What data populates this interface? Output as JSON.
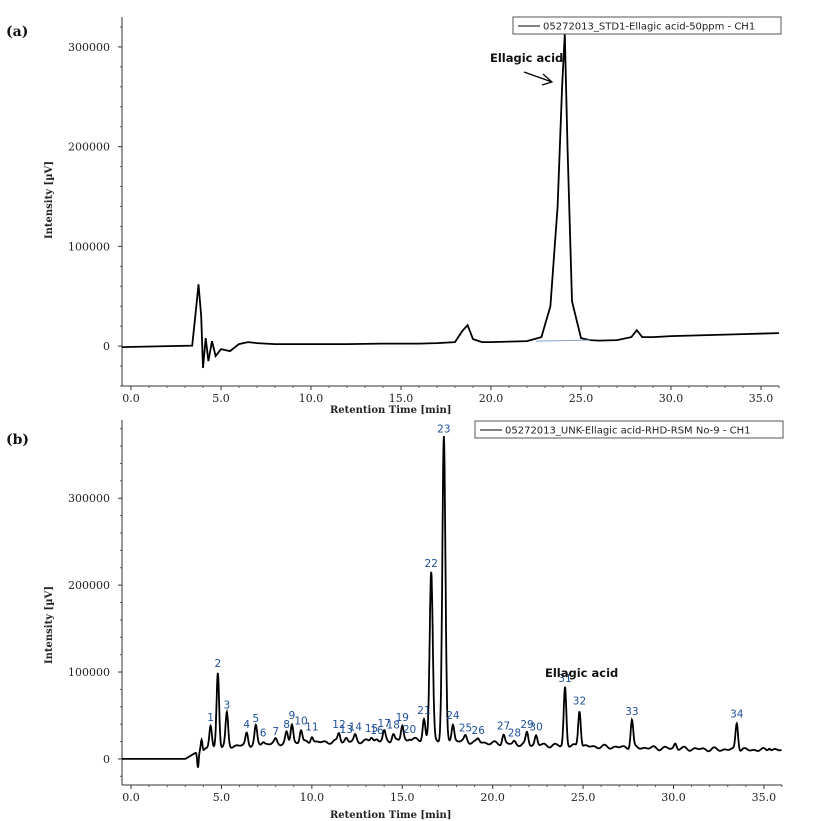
{
  "chart_data": [
    {
      "panel": "(a)",
      "type": "line",
      "legend": "05272013_STD1-Ellagic acid-50ppm - CH1",
      "xlabel": "Retention Time [min]",
      "ylabel": "Intensity [µV]",
      "xlim": [
        -0.5,
        36
      ],
      "ylim": [
        -40000,
        330000
      ],
      "xticks": [
        0.0,
        5.0,
        10.0,
        15.0,
        20.0,
        25.0,
        30.0,
        35.0
      ],
      "xtick_labels": [
        "0.0",
        "5.0",
        "10.0",
        "15.0",
        "20.0",
        "25.0",
        "30.0",
        "35.0"
      ],
      "yticks": [
        0,
        100000,
        200000,
        300000
      ],
      "ytick_labels": [
        "0",
        "100000",
        "200000",
        "300000"
      ],
      "annotation": "Ellagic acid",
      "x": [
        -0.5,
        3.4,
        3.6,
        3.75,
        3.9,
        4.0,
        4.15,
        4.3,
        4.5,
        4.7,
        5.0,
        5.5,
        6.0,
        6.5,
        7.0,
        8,
        10,
        12,
        14,
        15,
        16,
        17,
        18,
        18.4,
        18.7,
        19.0,
        19.5,
        20,
        21,
        22,
        22.8,
        23.3,
        23.7,
        23.95,
        24.1,
        24.25,
        24.5,
        25,
        25.5,
        26,
        27,
        27.8,
        28.1,
        28.4,
        29,
        30,
        32,
        34,
        36
      ],
      "y": [
        -1000,
        500,
        35000,
        62000,
        30000,
        -22000,
        8000,
        -15000,
        5000,
        -10000,
        -3000,
        -5000,
        2000,
        4000,
        3000,
        2000,
        2000,
        2000,
        2500,
        2500,
        2500,
        3000,
        4000,
        15000,
        21000,
        7000,
        4000,
        4000,
        4500,
        5000,
        9000,
        40000,
        140000,
        260000,
        313000,
        200000,
        45000,
        8000,
        6000,
        5500,
        6000,
        9000,
        16000,
        9000,
        9000,
        10000,
        11000,
        12000,
        13000
      ]
    },
    {
      "panel": "(b)",
      "type": "line",
      "legend": "05272013_UNK-Ellagic acid-RHD-RSM No-9 - CH1",
      "xlabel": "Retention Time [min]",
      "ylabel": "Intensity [µV]",
      "xlim": [
        -0.5,
        36
      ],
      "ylim": [
        -30000,
        390000
      ],
      "xticks": [
        0.0,
        5.0,
        10.0,
        15.0,
        20.0,
        25.0,
        30.0,
        35.0
      ],
      "xtick_labels": [
        "0.0",
        "5.0",
        "10.0",
        "15.0",
        "20.0",
        "25.0",
        "30.0",
        "35.0"
      ],
      "yticks": [
        0,
        100000,
        200000,
        300000
      ],
      "ytick_labels": [
        "0",
        "100000",
        "200000",
        "300000"
      ],
      "annotation": "Ellagic acid",
      "baseline": [
        [
          -0.5,
          0
        ],
        [
          3.0,
          0
        ],
        [
          3.8,
          10000
        ],
        [
          5,
          14000
        ],
        [
          8,
          18000
        ],
        [
          12,
          20000
        ],
        [
          16,
          22000
        ],
        [
          18,
          21000
        ],
        [
          20,
          18000
        ],
        [
          24,
          15000
        ],
        [
          28,
          13000
        ],
        [
          32,
          11000
        ],
        [
          36,
          10000
        ]
      ],
      "peaks": [
        {
          "label": "1",
          "x": 4.4,
          "y": 38000
        },
        {
          "label": "2",
          "x": 4.8,
          "y": 100000
        },
        {
          "label": "3",
          "x": 5.3,
          "y": 52000
        },
        {
          "label": "4",
          "x": 6.4,
          "y": 30000
        },
        {
          "label": "5",
          "x": 6.9,
          "y": 37000
        },
        {
          "label": "6",
          "x": 7.3,
          "y": 20000
        },
        {
          "label": "7",
          "x": 8.0,
          "y": 22000
        },
        {
          "label": "8",
          "x": 8.6,
          "y": 30000
        },
        {
          "label": "9",
          "x": 8.9,
          "y": 40000
        },
        {
          "label": "10",
          "x": 9.4,
          "y": 34000
        },
        {
          "label": "11",
          "x": 10.0,
          "y": 27000
        },
        {
          "label": "12",
          "x": 11.5,
          "y": 30000
        },
        {
          "label": "13",
          "x": 11.9,
          "y": 24000
        },
        {
          "label": "14",
          "x": 12.4,
          "y": 27000
        },
        {
          "label": "15",
          "x": 13.3,
          "y": 25000
        },
        {
          "label": "16",
          "x": 13.6,
          "y": 23000
        },
        {
          "label": "17",
          "x": 14.0,
          "y": 31000
        },
        {
          "label": "18",
          "x": 14.5,
          "y": 29000
        },
        {
          "label": "19",
          "x": 15.0,
          "y": 38000
        },
        {
          "label": "20",
          "x": 15.4,
          "y": 24000
        },
        {
          "label": "21",
          "x": 16.2,
          "y": 46000
        },
        {
          "label": "22",
          "x": 16.6,
          "y": 215000
        },
        {
          "label": "23",
          "x": 17.3,
          "y": 370000
        },
        {
          "label": "24",
          "x": 17.8,
          "y": 40000
        },
        {
          "label": "25",
          "x": 18.5,
          "y": 26000
        },
        {
          "label": "26",
          "x": 19.2,
          "y": 23000
        },
        {
          "label": "27",
          "x": 20.6,
          "y": 28000
        },
        {
          "label": "28",
          "x": 21.2,
          "y": 20000
        },
        {
          "label": "29",
          "x": 21.9,
          "y": 30000
        },
        {
          "label": "30",
          "x": 22.4,
          "y": 27000
        },
        {
          "label": "31",
          "x": 24.0,
          "y": 83000
        },
        {
          "label": "32",
          "x": 24.8,
          "y": 57000
        },
        {
          "label": "33",
          "x": 27.7,
          "y": 45000
        },
        {
          "label": "34",
          "x": 33.5,
          "y": 42000
        },
        {
          "label": "",
          "x": 30.1,
          "y": 18000
        },
        {
          "label": "",
          "x": 35.3,
          "y": 14000
        }
      ],
      "dip": [
        {
          "x": 3.7,
          "y": -10000
        },
        {
          "x": 3.9,
          "y": 22000
        }
      ]
    }
  ]
}
